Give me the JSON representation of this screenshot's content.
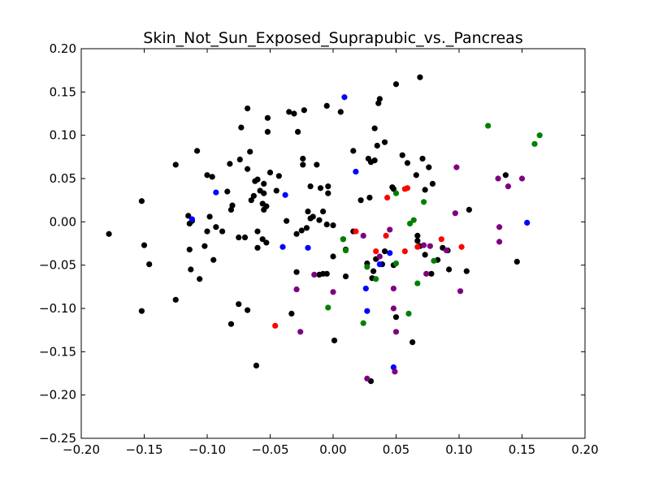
{
  "chart_data": {
    "type": "scatter",
    "title": "Skin_Not_Sun_Exposed_Suprapubic_vs._Pancreas",
    "xlabel": "",
    "ylabel": "",
    "xlim": [
      -0.2,
      0.2
    ],
    "ylim": [
      -0.25,
      0.2
    ],
    "x_ticks": [
      -0.2,
      -0.15,
      -0.1,
      -0.05,
      0.0,
      0.05,
      0.1,
      0.15,
      0.2
    ],
    "y_ticks": [
      -0.25,
      -0.2,
      -0.15,
      -0.1,
      -0.05,
      0.0,
      0.05,
      0.1,
      0.15,
      0.2
    ],
    "x_tick_labels": [
      "−0.20",
      "−0.15",
      "−0.10",
      "−0.05",
      "0.00",
      "0.05",
      "0.10",
      "0.15",
      "0.20"
    ],
    "y_tick_labels": [
      "−0.25",
      "−0.20",
      "−0.15",
      "−0.10",
      "−0.05",
      "0.00",
      "0.05",
      "0.10",
      "0.15",
      "0.20"
    ],
    "grid": false,
    "legend": "none",
    "series": [
      {
        "color": "#000000",
        "points": [
          [
            -0.178,
            -0.014
          ],
          [
            -0.152,
            0.024
          ],
          [
            -0.15,
            -0.027
          ],
          [
            -0.146,
            -0.049
          ],
          [
            -0.152,
            -0.103
          ],
          [
            -0.125,
            0.066
          ],
          [
            -0.125,
            -0.09
          ],
          [
            -0.108,
            0.082
          ],
          [
            -0.1,
            0.054
          ],
          [
            -0.096,
            0.052
          ],
          [
            -0.115,
            0.007
          ],
          [
            -0.112,
            0.001
          ],
          [
            -0.114,
            -0.002
          ],
          [
            -0.114,
            -0.032
          ],
          [
            -0.113,
            -0.055
          ],
          [
            -0.106,
            -0.066
          ],
          [
            -0.1,
            -0.011
          ],
          [
            -0.098,
            0.006
          ],
          [
            -0.093,
            -0.006
          ],
          [
            -0.088,
            -0.011
          ],
          [
            -0.095,
            -0.044
          ],
          [
            -0.102,
            -0.028
          ],
          [
            -0.082,
            0.067
          ],
          [
            -0.084,
            0.035
          ],
          [
            -0.08,
            0.019
          ],
          [
            -0.081,
            0.014
          ],
          [
            -0.081,
            -0.118
          ],
          [
            -0.075,
            -0.095
          ],
          [
            -0.075,
            -0.018
          ],
          [
            -0.074,
            0.072
          ],
          [
            -0.073,
            0.109
          ],
          [
            -0.068,
            0.131
          ],
          [
            -0.066,
            0.081
          ],
          [
            -0.068,
            0.061
          ],
          [
            -0.063,
            0.03
          ],
          [
            -0.065,
            0.025
          ],
          [
            -0.06,
            0.049
          ],
          [
            -0.062,
            0.047
          ],
          [
            -0.06,
            -0.011
          ],
          [
            -0.07,
            -0.018
          ],
          [
            -0.068,
            -0.102
          ],
          [
            -0.06,
            -0.03
          ],
          [
            -0.061,
            -0.166
          ],
          [
            -0.058,
            0.036
          ],
          [
            -0.055,
            0.044
          ],
          [
            -0.055,
            0.033
          ],
          [
            -0.056,
            0.021
          ],
          [
            -0.055,
            0.014
          ],
          [
            -0.053,
            0.018
          ],
          [
            -0.056,
            -0.02
          ],
          [
            -0.053,
            -0.024
          ],
          [
            -0.052,
            0.12
          ],
          [
            -0.052,
            0.104
          ],
          [
            -0.05,
            0.057
          ],
          [
            -0.045,
            0.036
          ],
          [
            -0.043,
            0.053
          ],
          [
            -0.035,
            0.127
          ],
          [
            -0.031,
            0.125
          ],
          [
            -0.028,
            0.104
          ],
          [
            -0.023,
            0.129
          ],
          [
            -0.024,
            0.073
          ],
          [
            -0.024,
            0.066
          ],
          [
            -0.018,
            0.041
          ],
          [
            -0.02,
            0.012
          ],
          [
            -0.018,
            0.004
          ],
          [
            -0.016,
            0.006
          ],
          [
            -0.021,
            -0.007
          ],
          [
            -0.025,
            -0.01
          ],
          [
            -0.029,
            -0.014
          ],
          [
            -0.013,
            0.066
          ],
          [
            -0.01,
            0.039
          ],
          [
            -0.011,
            0.002
          ],
          [
            -0.008,
            0.012
          ],
          [
            -0.004,
            0.033
          ],
          [
            -0.004,
            0.041
          ],
          [
            -0.005,
            0.134
          ],
          [
            0.006,
            0.127
          ],
          [
            0.0,
            -0.004
          ],
          [
            -0.005,
            -0.003
          ],
          [
            0.0,
            -0.04
          ],
          [
            -0.008,
            -0.06
          ],
          [
            -0.011,
            -0.061
          ],
          [
            -0.029,
            -0.058
          ],
          [
            -0.005,
            -0.06
          ],
          [
            0.001,
            -0.137
          ],
          [
            0.01,
            -0.063
          ],
          [
            -0.033,
            -0.106
          ],
          [
            0.008,
            -0.02
          ],
          [
            0.01,
            -0.032
          ],
          [
            0.016,
            -0.011
          ],
          [
            0.016,
            0.082
          ],
          [
            0.022,
            0.025
          ],
          [
            0.028,
            0.073
          ],
          [
            0.03,
            0.069
          ],
          [
            0.033,
            0.071
          ],
          [
            0.033,
            0.108
          ],
          [
            0.029,
            0.028
          ],
          [
            0.035,
            0.088
          ],
          [
            0.036,
            0.137
          ],
          [
            0.037,
            0.142
          ],
          [
            0.041,
            0.092
          ],
          [
            0.048,
            0.038
          ],
          [
            0.047,
            0.04
          ],
          [
            0.055,
            0.077
          ],
          [
            0.05,
            0.159
          ],
          [
            0.059,
            0.068
          ],
          [
            0.066,
            0.054
          ],
          [
            0.069,
            0.167
          ],
          [
            0.071,
            0.073
          ],
          [
            0.073,
            0.037
          ],
          [
            0.076,
            0.063
          ],
          [
            0.079,
            0.044
          ],
          [
            0.067,
            -0.016
          ],
          [
            0.067,
            -0.022
          ],
          [
            0.069,
            -0.028
          ],
          [
            0.073,
            -0.038
          ],
          [
            0.083,
            -0.044
          ],
          [
            0.078,
            -0.06
          ],
          [
            0.087,
            -0.03
          ],
          [
            0.091,
            -0.033
          ],
          [
            0.092,
            -0.055
          ],
          [
            0.108,
            0.014
          ],
          [
            0.106,
            -0.057
          ],
          [
            0.137,
            0.054
          ],
          [
            0.146,
            -0.046
          ],
          [
            0.039,
            -0.049
          ],
          [
            0.048,
            -0.05
          ],
          [
            0.05,
            -0.11
          ],
          [
            0.027,
            -0.048
          ],
          [
            0.032,
            -0.057
          ],
          [
            0.031,
            -0.065
          ],
          [
            0.063,
            -0.139
          ],
          [
            0.03,
            -0.184
          ],
          [
            0.034,
            -0.043
          ],
          [
            0.041,
            -0.034
          ],
          [
            -0.037,
            0.001
          ]
        ]
      },
      {
        "color": "#0000ff",
        "points": [
          [
            0.009,
            0.144
          ],
          [
            0.018,
            0.058
          ],
          [
            -0.038,
            0.031
          ],
          [
            -0.093,
            0.034
          ],
          [
            -0.112,
            0.003
          ],
          [
            -0.04,
            -0.029
          ],
          [
            -0.02,
            -0.03
          ],
          [
            0.037,
            -0.049
          ],
          [
            0.045,
            -0.036
          ],
          [
            0.026,
            -0.077
          ],
          [
            0.027,
            -0.103
          ],
          [
            0.048,
            -0.168
          ],
          [
            0.154,
            -0.001
          ]
        ]
      },
      {
        "color": "#ff0000",
        "points": [
          [
            -0.046,
            -0.12
          ],
          [
            0.018,
            -0.011
          ],
          [
            0.034,
            -0.034
          ],
          [
            0.043,
            0.028
          ],
          [
            0.042,
            -0.016
          ],
          [
            0.057,
            0.038
          ],
          [
            0.059,
            0.039
          ],
          [
            0.057,
            -0.034
          ],
          [
            0.067,
            -0.029
          ],
          [
            0.086,
            -0.02
          ],
          [
            0.102,
            -0.029
          ]
        ]
      },
      {
        "color": "#008000",
        "points": [
          [
            0.123,
            0.111
          ],
          [
            0.16,
            0.09
          ],
          [
            0.164,
            0.1
          ],
          [
            0.05,
            0.033
          ],
          [
            0.072,
            0.023
          ],
          [
            0.061,
            -0.002
          ],
          [
            0.064,
            0.002
          ],
          [
            0.008,
            -0.02
          ],
          [
            0.01,
            -0.033
          ],
          [
            0.027,
            -0.052
          ],
          [
            0.034,
            -0.066
          ],
          [
            0.05,
            -0.048
          ],
          [
            0.06,
            -0.106
          ],
          [
            0.067,
            -0.071
          ],
          [
            0.08,
            -0.045
          ],
          [
            -0.004,
            -0.099
          ],
          [
            0.024,
            -0.117
          ]
        ]
      },
      {
        "color": "#800080",
        "points": [
          [
            0.098,
            0.063
          ],
          [
            0.131,
            0.05
          ],
          [
            0.139,
            0.041
          ],
          [
            0.15,
            0.05
          ],
          [
            0.097,
            0.01
          ],
          [
            0.132,
            -0.006
          ],
          [
            0.132,
            -0.023
          ],
          [
            0.037,
            -0.04
          ],
          [
            0.045,
            -0.009
          ],
          [
            0.024,
            -0.016
          ],
          [
            -0.015,
            -0.061
          ],
          [
            -0.029,
            -0.078
          ],
          [
            0.0,
            -0.081
          ],
          [
            0.072,
            -0.027
          ],
          [
            0.077,
            -0.028
          ],
          [
            0.09,
            -0.033
          ],
          [
            0.074,
            -0.06
          ],
          [
            0.048,
            -0.077
          ],
          [
            0.048,
            -0.1
          ],
          [
            0.05,
            -0.127
          ],
          [
            0.101,
            -0.08
          ],
          [
            -0.026,
            -0.127
          ],
          [
            0.027,
            -0.181
          ],
          [
            0.049,
            -0.173
          ]
        ]
      }
    ]
  }
}
